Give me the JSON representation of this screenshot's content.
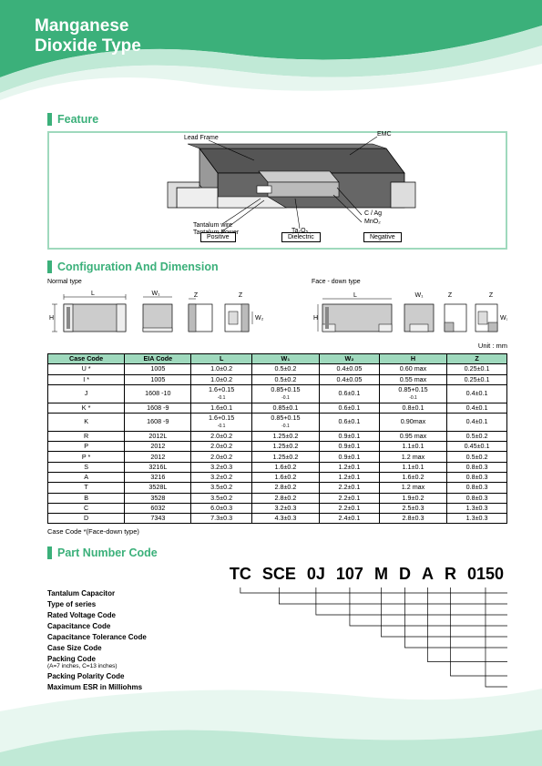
{
  "title_line1": "Manganese",
  "title_line2": "Dioxide Type",
  "colors": {
    "green_dark": "#3bb07a",
    "green_mid": "#6fc99b",
    "green_light": "#b9e7d1",
    "green_pale": "#e6f6ee"
  },
  "sections": {
    "feature": "Feature",
    "config": "Configuration And Dimension",
    "partnum": "Part Number Code"
  },
  "feature": {
    "labels": {
      "lead_frame": "Lead Frame",
      "emc": "EMC",
      "tantalum_wire": "Tantalum wire",
      "tantalum_power": "Tantalum Power",
      "ta2o5": "Ta₂O₅",
      "cag": "C / Ag",
      "mno2": "MnO₂"
    },
    "legend": {
      "positive": "Positive",
      "dielectric": "Dielectric",
      "negative": "Negative"
    }
  },
  "config": {
    "normal_type": "Normal type",
    "face_down": "Face - down type",
    "L": "L",
    "W1": "W₁",
    "Z": "Z",
    "W2": "W₂",
    "H": "H",
    "unit": "Unit : mm"
  },
  "dim_table": {
    "headers": [
      "Case Code",
      "EIA Code",
      "L",
      "W₁",
      "W₂",
      "H",
      "Z"
    ],
    "rows": [
      [
        "U *",
        "1005",
        "1.0±0.2",
        "0.5±0.2",
        "0.4±0.05",
        "0.60 max",
        "0.25±0.1"
      ],
      [
        "I *",
        "1005",
        "1.0±0.2",
        "0.5±0.2",
        "0.4±0.05",
        "0.55 max",
        "0.25±0.1"
      ],
      [
        "J",
        "1608 -10",
        "1.6+0.15\n-0.1",
        "0.85+0.15\n-0.1",
        "0.6±0.1",
        "0.85+0.15\n-0.1",
        "0.4±0.1"
      ],
      [
        "K *",
        "1608 -9",
        "1.6±0.1",
        "0.85±0.1",
        "0.6±0.1",
        "0.8±0.1",
        "0.4±0.1"
      ],
      [
        "K",
        "1608 -9",
        "1.6+0.15\n-0.1",
        "0.85+0.15\n-0.1",
        "0.6±0.1",
        "0.90max",
        "0.4±0.1"
      ],
      [
        "R",
        "2012L",
        "2.0±0.2",
        "1.25±0.2",
        "0.9±0.1",
        "0.95 max",
        "0.5±0.2"
      ],
      [
        "P",
        "2012",
        "2.0±0.2",
        "1.25±0.2",
        "0.9±0.1",
        "1.1±0.1",
        "0.45±0.1"
      ],
      [
        "P *",
        "2012",
        "2.0±0.2",
        "1.25±0.2",
        "0.9±0.1",
        "1.2 max",
        "0.5±0.2"
      ],
      [
        "S",
        "3216L",
        "3.2±0.3",
        "1.6±0.2",
        "1.2±0.1",
        "1.1±0.1",
        "0.8±0.3"
      ],
      [
        "A",
        "3216",
        "3.2±0.2",
        "1.6±0.2",
        "1.2±0.1",
        "1.6±0.2",
        "0.8±0.3"
      ],
      [
        "T",
        "3528L",
        "3.5±0.2",
        "2.8±0.2",
        "2.2±0.1",
        "1.2 max",
        "0.8±0.3"
      ],
      [
        "B",
        "3528",
        "3.5±0.2",
        "2.8±0.2",
        "2.2±0.1",
        "1.9±0.2",
        "0.8±0.3"
      ],
      [
        "C",
        "6032",
        "6.0±0.3",
        "3.2±0.3",
        "2.2±0.1",
        "2.5±0.3",
        "1.3±0.3"
      ],
      [
        "D",
        "7343",
        "7.3±0.3",
        "4.3±0.3",
        "2.4±0.1",
        "2.8±0.3",
        "1.3±0.3"
      ]
    ],
    "footnote": "Case Code *(Face-down type)"
  },
  "partnum": {
    "segments": [
      "TC",
      "SCE",
      "0J",
      "107",
      "M",
      "D",
      "A",
      "R",
      "0150"
    ],
    "descs": [
      {
        "label": "Tantalum Capacitor",
        "sub": ""
      },
      {
        "label": "Type of series",
        "sub": ""
      },
      {
        "label": "Rated Voltage Code",
        "sub": ""
      },
      {
        "label": "Capacitance Code",
        "sub": ""
      },
      {
        "label": "Capacitance Tolerance Code",
        "sub": ""
      },
      {
        "label": "Case Size Code",
        "sub": ""
      },
      {
        "label": "Packing Code",
        "sub": "(A=7 inches, C=13 inches)"
      },
      {
        "label": "Packing Polarity Code",
        "sub": ""
      },
      {
        "label": "Maximum ESR in Milliohms",
        "sub": ""
      }
    ]
  }
}
